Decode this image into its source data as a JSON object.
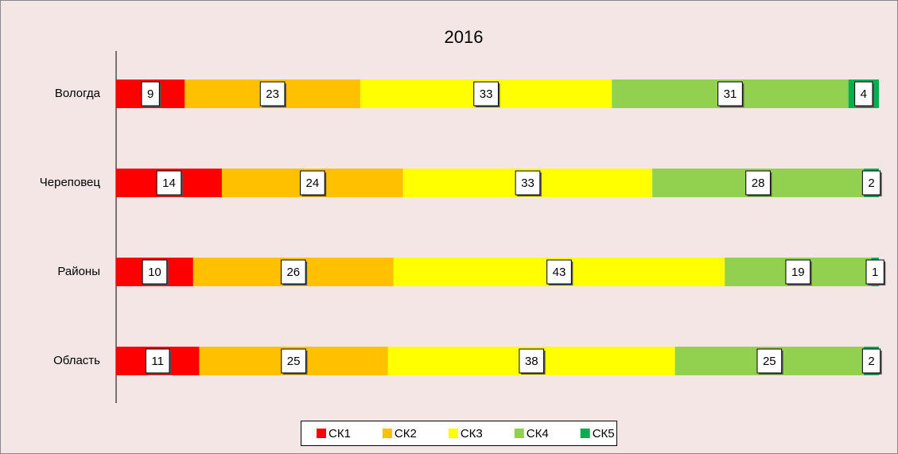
{
  "chart_data": {
    "type": "bar",
    "orientation": "horizontal",
    "stacked": "percent",
    "title": "2016",
    "categories": [
      "Вологда",
      "Череповец",
      "Районы",
      "Область"
    ],
    "series": [
      {
        "name": "СК1",
        "color": "#ff0000",
        "values": [
          9,
          14,
          10,
          11
        ]
      },
      {
        "name": "СК2",
        "color": "#ffc000",
        "values": [
          23,
          24,
          26,
          25
        ]
      },
      {
        "name": "СК3",
        "color": "#ffff00",
        "values": [
          33,
          33,
          43,
          38
        ]
      },
      {
        "name": "СК4",
        "color": "#92d050",
        "values": [
          31,
          28,
          19,
          25
        ]
      },
      {
        "name": "СК5",
        "color": "#00b050",
        "values": [
          4,
          2,
          1,
          2
        ]
      }
    ],
    "legend": "bottom"
  }
}
